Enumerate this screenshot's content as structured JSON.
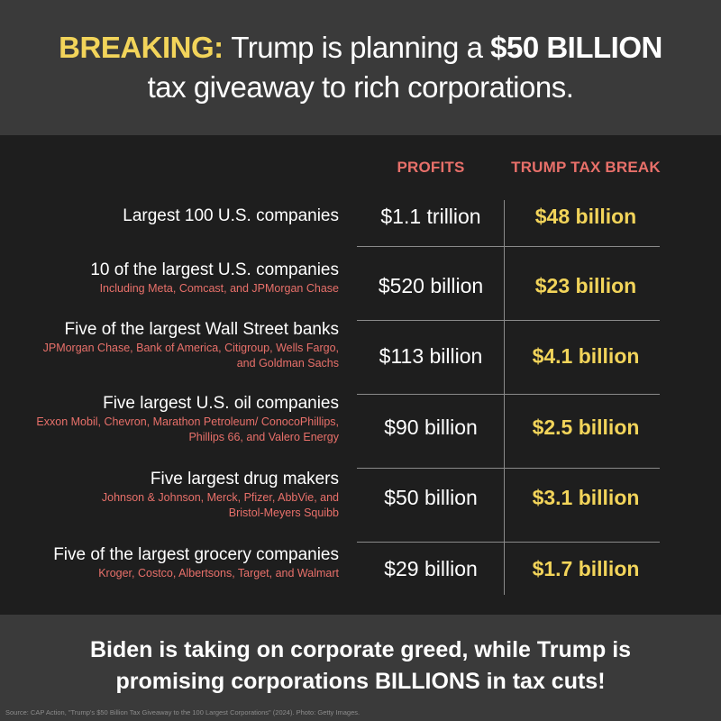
{
  "header": {
    "breaking": "BREAKING:",
    "line1_rest_a": "Trump is planning a",
    "line1_amount": "$50 BILLION",
    "line2": "tax giveaway to rich corporations."
  },
  "columns": {
    "profits": "PROFITS",
    "tax_break": "TRUMP TAX BREAK"
  },
  "rows": [
    {
      "title": "Largest 100 U.S. companies",
      "sub": "",
      "profits": "$1.1 trillion",
      "tax_break": "$48 billion"
    },
    {
      "title": "10 of the largest U.S. companies",
      "sub": "Including Meta, Comcast, and JPMorgan Chase",
      "profits": "$520 billion",
      "tax_break": "$23 billion"
    },
    {
      "title": "Five of the largest Wall Street banks",
      "sub": "JPMorgan Chase, Bank of America, Citigroup, Wells Fargo, and Goldman Sachs",
      "profits": "$113 billion",
      "tax_break": "$4.1 billion"
    },
    {
      "title": "Five largest U.S. oil companies",
      "sub": "Exxon Mobil, Chevron, Marathon Petroleum/ ConocoPhillips, Phillips 66, and Valero Energy",
      "profits": "$90 billion",
      "tax_break": "$2.5 billion"
    },
    {
      "title": "Five largest drug makers",
      "sub": "Johnson & Johnson, Merck, Pfizer, AbbVie, and Bristol-Meyers Squibb",
      "profits": "$50 billion",
      "tax_break": "$3.1 billion"
    },
    {
      "title": "Five of the largest grocery companies",
      "sub": "Kroger, Costco, Albertsons, Target, and Walmart",
      "profits": "$29 billion",
      "tax_break": "$1.7 billion"
    }
  ],
  "footer": {
    "message": "Biden is taking on corporate greed, while Trump is promising corporations BILLIONS in tax cuts!",
    "source": "Source: CAP Action, \"Trump's $50 Billion Tax Giveaway to the 100 Largest Corporations\" (2024). Photo: Getty Images."
  },
  "colors": {
    "highlight_yellow": "#f2d45a",
    "accent_salmon": "#e8706a",
    "panel_gray": "#3a3a3a",
    "background": "#1e1e1e"
  }
}
